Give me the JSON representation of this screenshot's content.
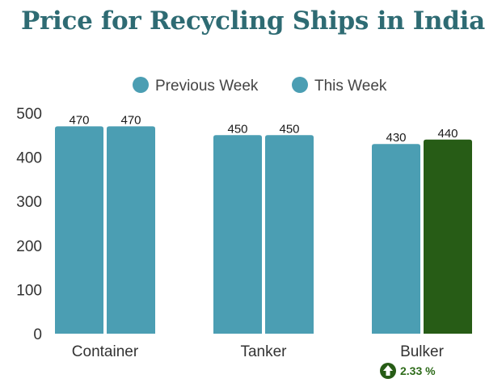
{
  "chart_data": {
    "type": "bar",
    "title": "Price for Recycling Ships in India",
    "categories": [
      "Container",
      "Tanker",
      "Bulker"
    ],
    "series": [
      {
        "name": "Previous Week",
        "values": [
          470,
          450,
          430
        ],
        "color": "#4b9eb3"
      },
      {
        "name": "This Week",
        "values": [
          470,
          450,
          440
        ],
        "color": "#4b9eb3"
      }
    ],
    "highlight": {
      "category": "Bulker",
      "series": "This Week",
      "color": "#275c16"
    },
    "yticks": [
      0,
      100,
      200,
      300,
      400,
      500
    ],
    "ylim": [
      0,
      500
    ],
    "grid": false,
    "legend": "top-center",
    "data_labels": true,
    "change_badge": {
      "category": "Bulker",
      "text": "2.33 %",
      "direction": "up",
      "icon": "up-arrow-circle-icon",
      "color": "#275c16"
    }
  }
}
